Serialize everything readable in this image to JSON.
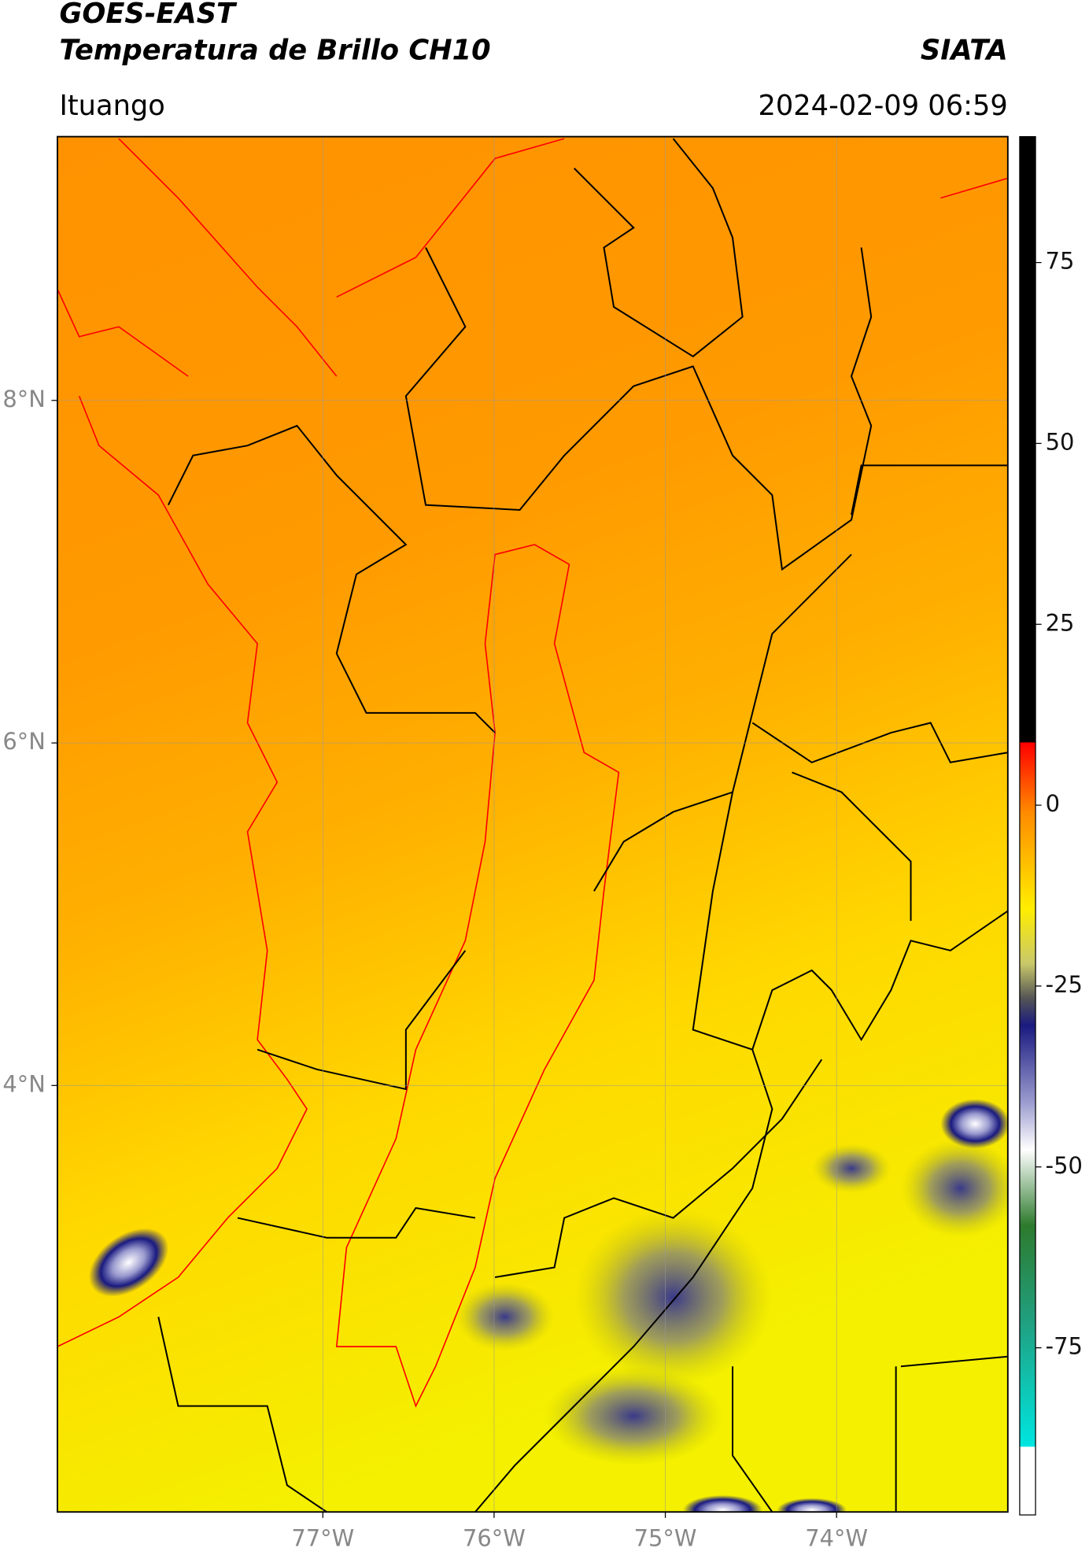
{
  "header": {
    "title": "GOES-EAST",
    "subtitle": "Temperatura de Brillo CH10",
    "source": "SIATA",
    "region": "Ituango",
    "datetime": "2024-02-09 06:59"
  },
  "chart_data": {
    "type": "map",
    "xlim": [
      -78.55,
      -73.0
    ],
    "ylim": [
      1.51,
      9.54
    ],
    "xticks": [
      {
        "value": -77,
        "label": "77°W"
      },
      {
        "value": -76,
        "label": "76°W"
      },
      {
        "value": -75,
        "label": "75°W"
      },
      {
        "value": -74,
        "label": "74°W"
      }
    ],
    "yticks": [
      {
        "value": 4,
        "label": "4°N"
      },
      {
        "value": 6,
        "label": "6°N"
      },
      {
        "value": 8,
        "label": "8°N"
      }
    ],
    "grid": true,
    "colorbar": {
      "lim": [
        -98.1,
        92.4
      ],
      "ticks": [
        -75,
        -50,
        -25,
        0,
        25,
        50,
        75
      ]
    }
  }
}
